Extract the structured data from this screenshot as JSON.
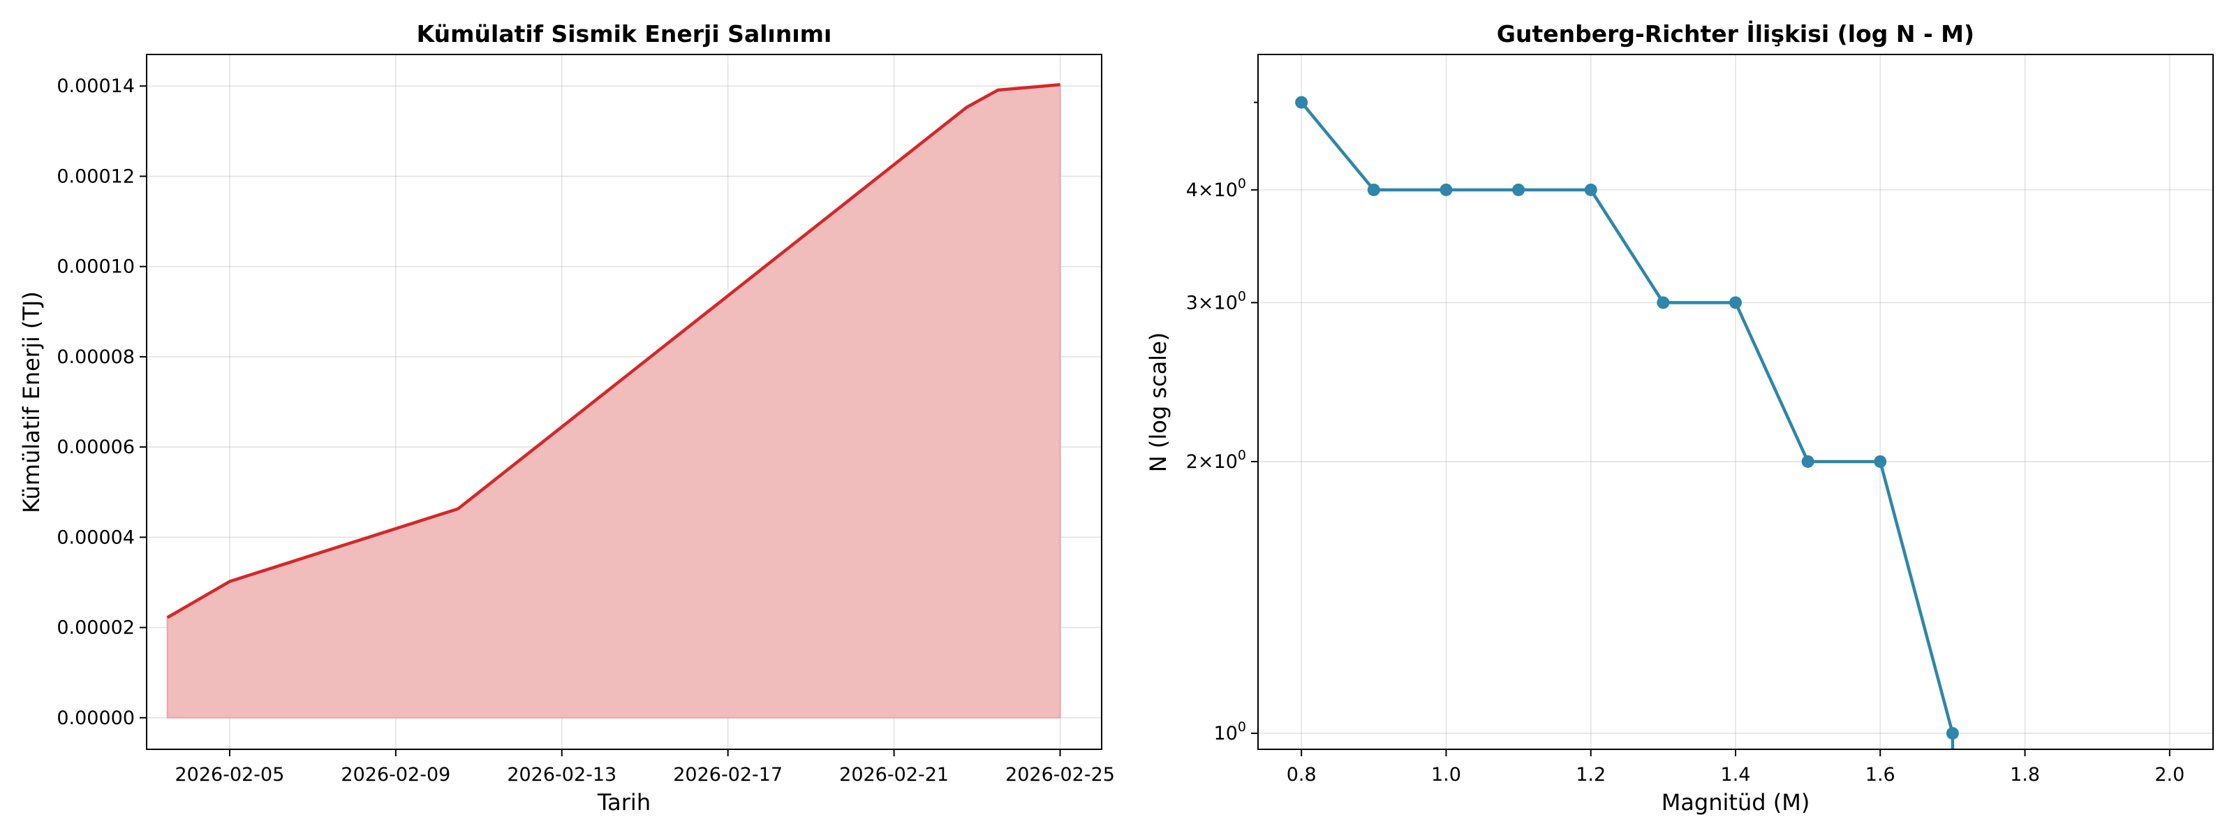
{
  "chart_data": [
    {
      "type": "area",
      "title": "Kümülatif Sismik Enerji Salınımı",
      "xlabel": "Tarih",
      "ylabel": "Kümülatif Enerji (TJ)",
      "x_ticks": [
        "2026-02-05",
        "2026-02-09",
        "2026-02-13",
        "2026-02-17",
        "2026-02-21",
        "2026-02-25"
      ],
      "y_ticks": [
        "0.00000",
        "0.00002",
        "0.00004",
        "0.00006",
        "0.00008",
        "0.00010",
        "0.00012",
        "0.00014"
      ],
      "xlim": [
        "2026-02-03",
        "2026-02-26"
      ],
      "ylim": [
        -7e-06,
        0.000147
      ],
      "x": [
        "2026-02-03T12:00",
        "2026-02-05T00:00",
        "2026-02-10T12:00",
        "2026-02-22T18:00",
        "2026-02-23T12:00",
        "2026-02-25T00:00"
      ],
      "values": [
        2.22e-05,
        3.02e-05,
        4.63e-05,
        0.0001353,
        0.0001391,
        0.0001403
      ],
      "grid": true,
      "line_color": "#d62728",
      "fill_color": "#f0bcbc"
    },
    {
      "type": "line",
      "title": "Gutenberg-Richter İlişkisi (log N - M)",
      "xlabel": "Magnitüd (M)",
      "ylabel": "N (log scale)",
      "y_scale": "log",
      "x_ticks": [
        "0.8",
        "1.0",
        "1.2",
        "1.4",
        "1.6",
        "1.8",
        "2.0"
      ],
      "y_ticks": [
        {
          "value": 1,
          "label": "10",
          "exp": "0"
        },
        {
          "value": 2,
          "label": "2×10",
          "exp": "0"
        },
        {
          "value": 3,
          "label": "3×10",
          "exp": "0"
        },
        {
          "value": 4,
          "label": "4×10",
          "exp": "0"
        }
      ],
      "xlim": [
        0.74,
        2.06
      ],
      "ylim": [
        0.96,
        5.65
      ],
      "x": [
        0.8,
        0.9,
        1.0,
        1.1,
        1.2,
        1.3,
        1.4,
        1.5,
        1.6,
        1.7
      ],
      "values": [
        5,
        4,
        4,
        4,
        4,
        3,
        3,
        2,
        2,
        1
      ],
      "grid": true,
      "line_color": "#2e86ab"
    }
  ]
}
